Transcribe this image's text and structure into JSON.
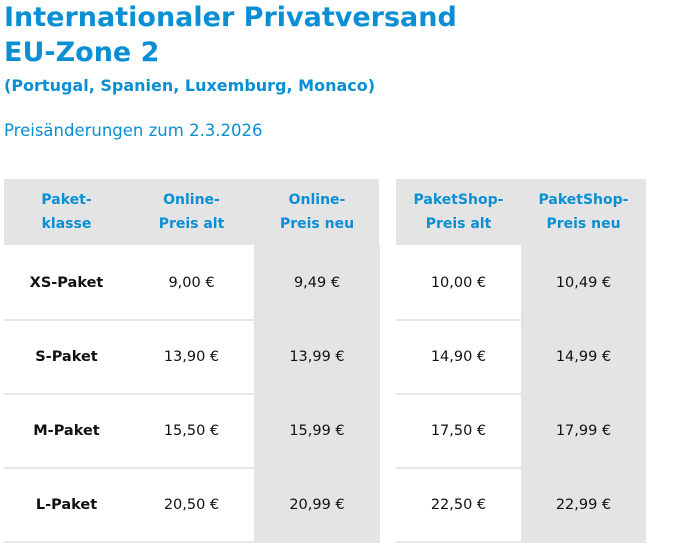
{
  "heading": {
    "line1": "Internationaler Privatversand",
    "line2": "EU-Zone 2",
    "countries": "(Portugal, Spanien, Luxemburg, Monaco)",
    "subheading": "Preisänderungen zum 2.3.2026"
  },
  "table": {
    "headers": [
      "Paket-\nklasse",
      "Online-\nPreis alt",
      "Online-\nPreis neu",
      "PaketShop-\nPreis alt",
      "PaketShop-\nPreis neu"
    ],
    "rows": [
      {
        "label": "XS-Paket",
        "values": [
          "9,00 €",
          "9,49 €",
          "10,00 €",
          "10,49 €"
        ]
      },
      {
        "label": "S-Paket",
        "values": [
          "13,90 €",
          "13,99 €",
          "14,90 €",
          "14,99 €"
        ]
      },
      {
        "label": "M-Paket",
        "values": [
          "15,50 €",
          "15,99 €",
          "17,50 €",
          "17,99 €"
        ]
      },
      {
        "label": "L-Paket",
        "values": [
          "20,50 €",
          "20,99 €",
          "22,50 €",
          "22,99 €"
        ]
      }
    ]
  },
  "colors": {
    "accent": "#0a8fd4",
    "shade": "#e4e4e4",
    "text": "#111111"
  }
}
